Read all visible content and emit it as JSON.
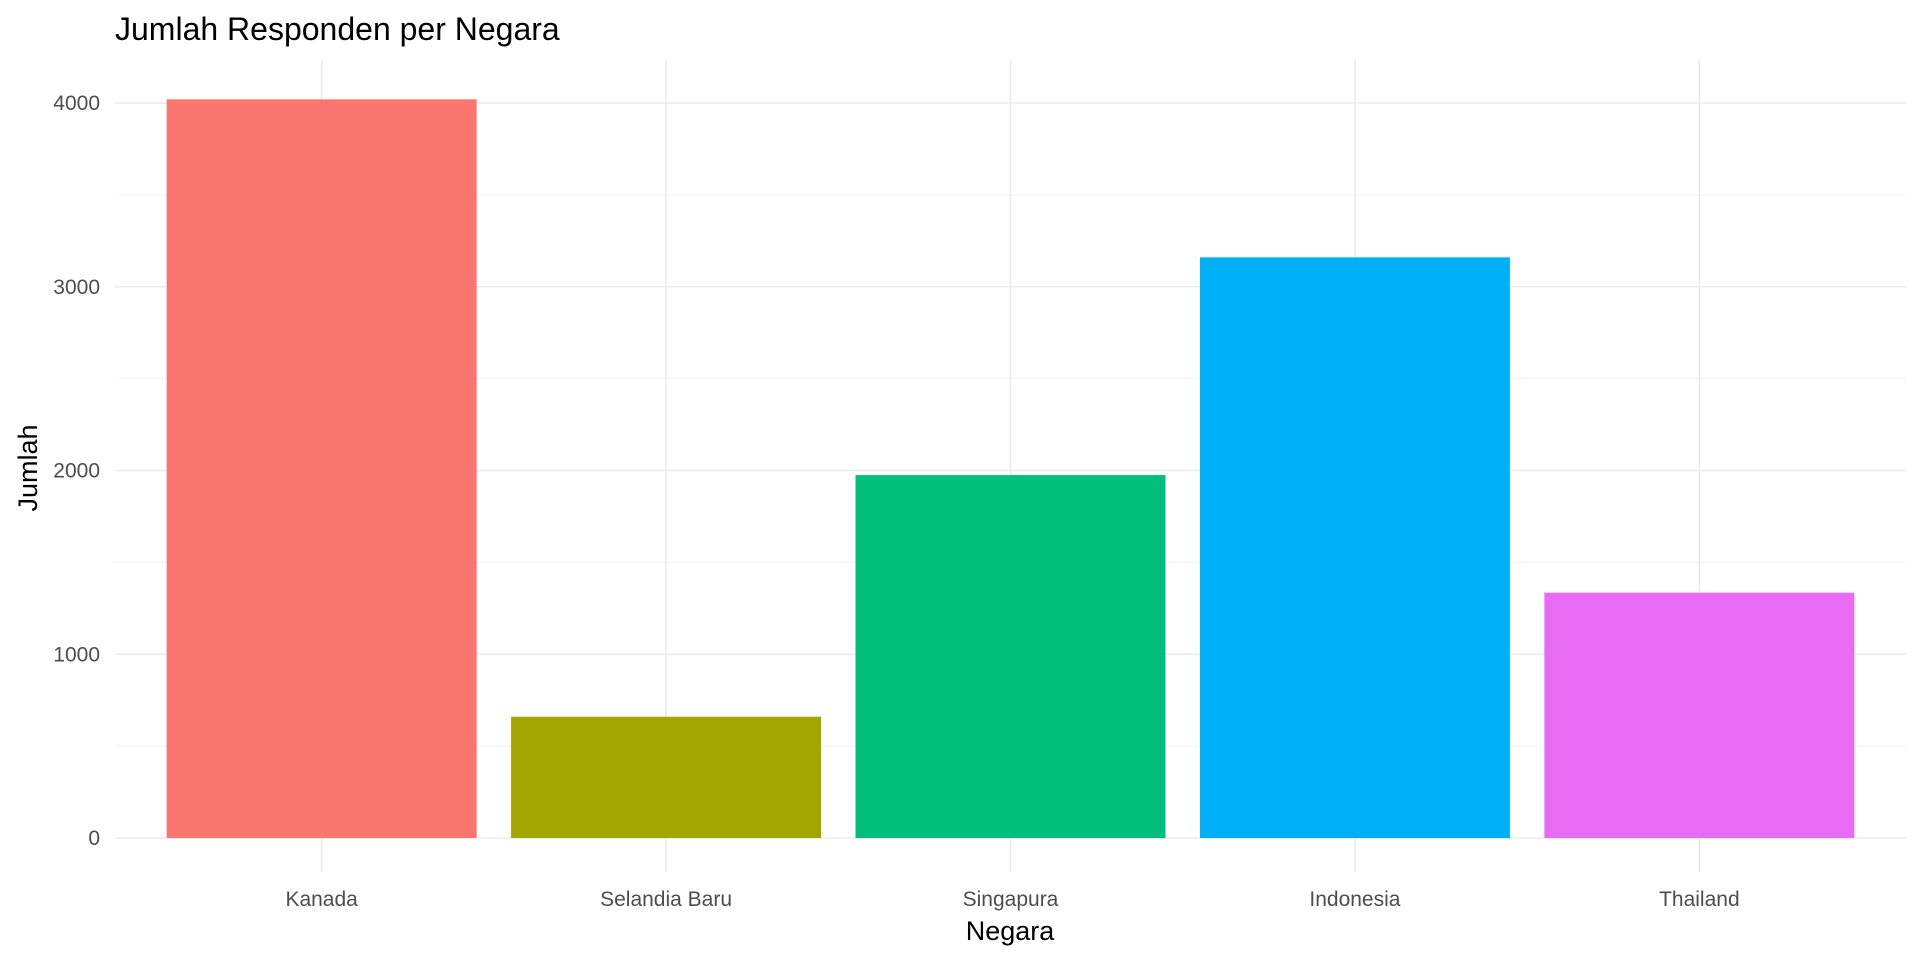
{
  "chart_data": {
    "type": "bar",
    "title": "Jumlah Responden per Negara",
    "xlabel": "Negara",
    "ylabel": "Jumlah",
    "categories": [
      "Kanada",
      "Selandia Baru",
      "Singapura",
      "Indonesia",
      "Thailand"
    ],
    "values": [
      4020,
      660,
      1975,
      3160,
      1335
    ],
    "colors": [
      "#F8766D",
      "#A3A500",
      "#00BF7D",
      "#00B0F6",
      "#E76BF3"
    ],
    "ylim": [
      0,
      4000
    ],
    "yticks": [
      0,
      1000,
      2000,
      3000,
      4000
    ],
    "grid": true,
    "legend": "none"
  }
}
